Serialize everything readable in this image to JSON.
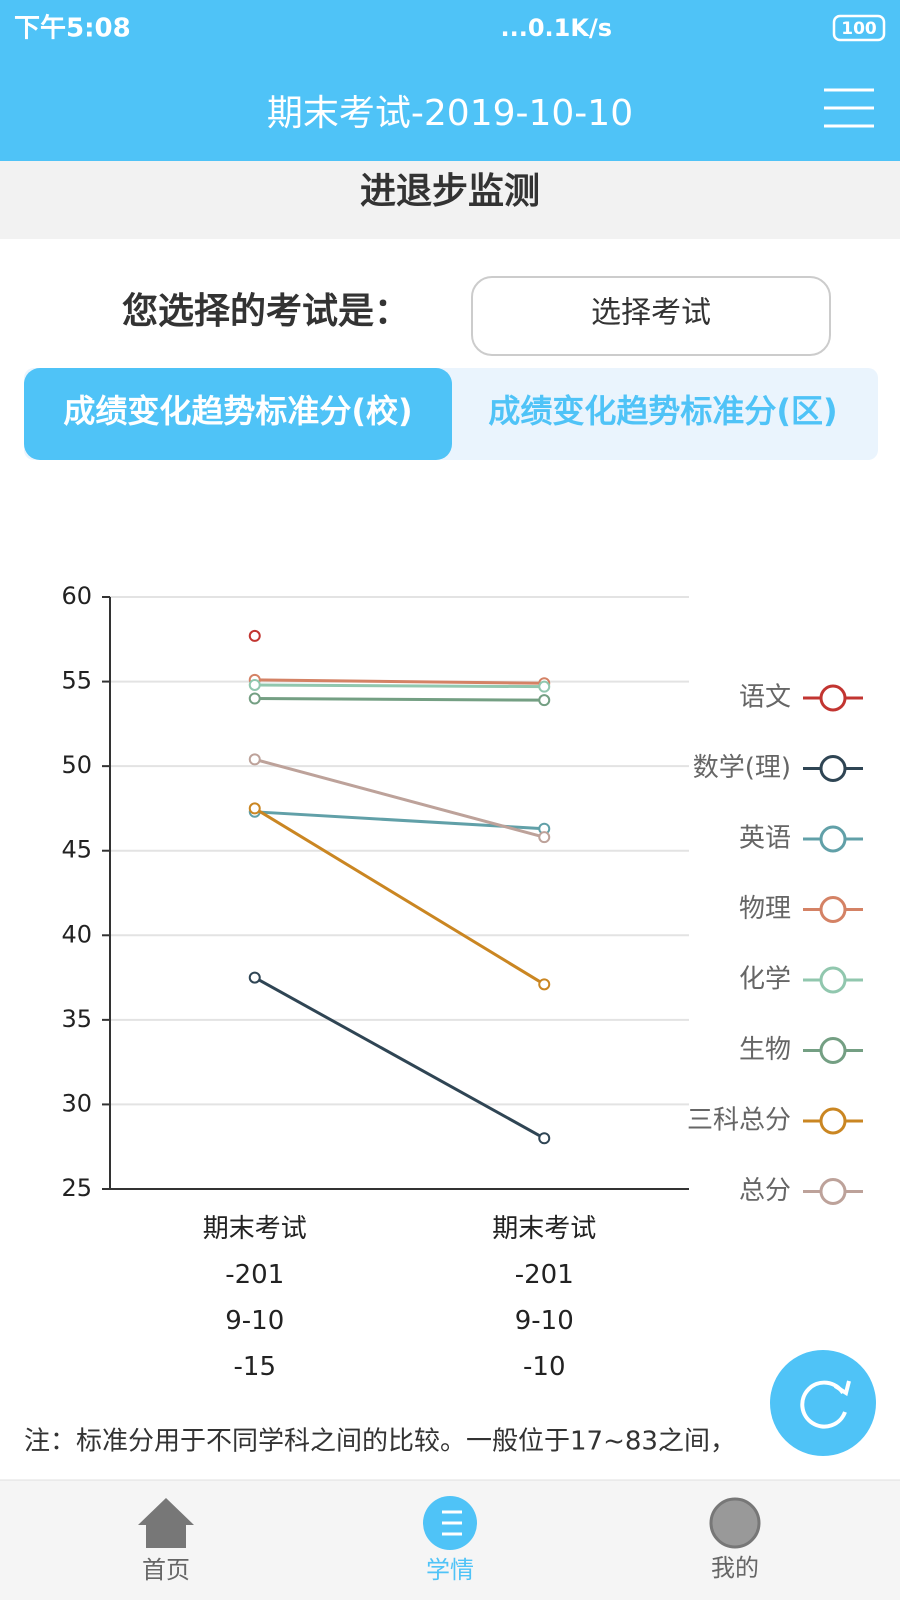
{
  "status_bar": {
    "time": "下午5:08",
    "network": "...0.1K/s",
    "battery": "100"
  },
  "header": {
    "title": "期末考试-2019-10-10"
  },
  "section_title": "进退步监测",
  "selector": {
    "label": "您选择的考试是：",
    "button": "选择考试"
  },
  "tabs": [
    "成绩变化趋势标准分(校)",
    "成绩变化趋势标准分(区)"
  ],
  "chart_data": {
    "type": "line",
    "categories": [
      "期末考试-2019-10-15",
      "期末考试-2019-10-10"
    ],
    "series": [
      {
        "name": "语文",
        "color": "#c23531",
        "values": [
          57.7,
          null
        ]
      },
      {
        "name": "数学(理)",
        "color": "#2f4554",
        "values": [
          37.5,
          28.0
        ]
      },
      {
        "name": "英语",
        "color": "#61a0a8",
        "values": [
          47.3,
          46.3
        ]
      },
      {
        "name": "物理",
        "color": "#d48265",
        "values": [
          55.1,
          54.9
        ]
      },
      {
        "name": "化学",
        "color": "#91c7ae",
        "values": [
          54.8,
          54.7
        ]
      },
      {
        "name": "生物",
        "color": "#749f83",
        "values": [
          54.0,
          53.9
        ]
      },
      {
        "name": "三科总分",
        "color": "#ca8622",
        "values": [
          47.5,
          37.1
        ]
      },
      {
        "name": "总分",
        "color": "#bda29a",
        "values": [
          50.4,
          45.8
        ]
      }
    ],
    "ylim": [
      25,
      60
    ],
    "yticks": [
      25,
      30,
      35,
      40,
      45,
      50,
      55,
      60
    ],
    "grid": true,
    "legend": "right"
  },
  "note": "注：标准分用于不同学科之间的比较。一般位于17~83之间，",
  "nav": [
    "首页",
    "学情",
    "我的"
  ]
}
